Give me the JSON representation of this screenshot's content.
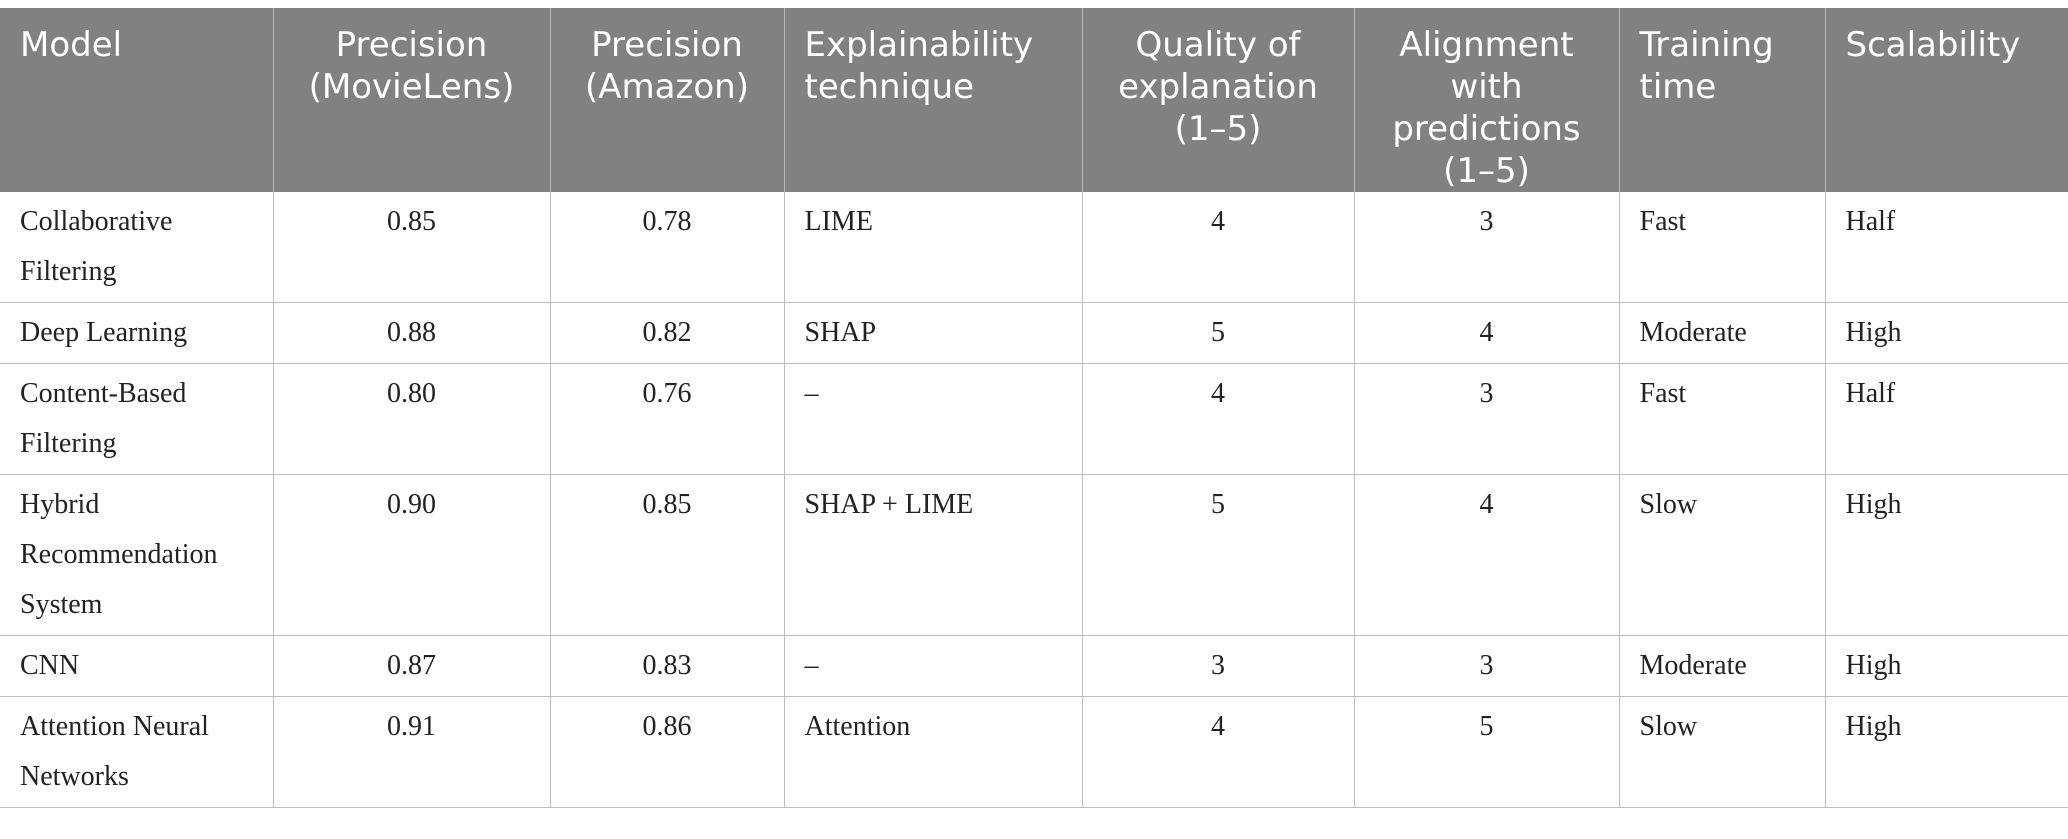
{
  "table": {
    "headers": [
      "Model",
      "Precision (MovieLens)",
      "Precision (Amazon)",
      "Explainability technique",
      "Quality of explanation (1–5)",
      "Alignment with predictions (1–5)",
      "Training time",
      "Scalability"
    ],
    "rows": [
      [
        "Collaborative Filtering",
        "0.85",
        "0.78",
        "LIME",
        "4",
        "3",
        "Fast",
        "Half"
      ],
      [
        "Deep Learning",
        "0.88",
        "0.82",
        "SHAP",
        "5",
        "4",
        "Moderate",
        "High"
      ],
      [
        "Content-Based Filtering",
        "0.80",
        "0.76",
        "–",
        "4",
        "3",
        "Fast",
        "Half"
      ],
      [
        "Hybrid Recommendation System",
        "0.90",
        "0.85",
        "SHAP + LIME",
        "5",
        "4",
        "Slow",
        "High"
      ],
      [
        "CNN",
        "0.87",
        "0.83",
        "–",
        "3",
        "3",
        "Moderate",
        "High"
      ],
      [
        "Attention Neural Networks",
        "0.91",
        "0.86",
        "Attention",
        "4",
        "5",
        "Slow",
        "High"
      ]
    ]
  },
  "colors": {
    "header_bg": "#808282",
    "header_text": "#ffffff",
    "grid": "#bdbdbd"
  }
}
